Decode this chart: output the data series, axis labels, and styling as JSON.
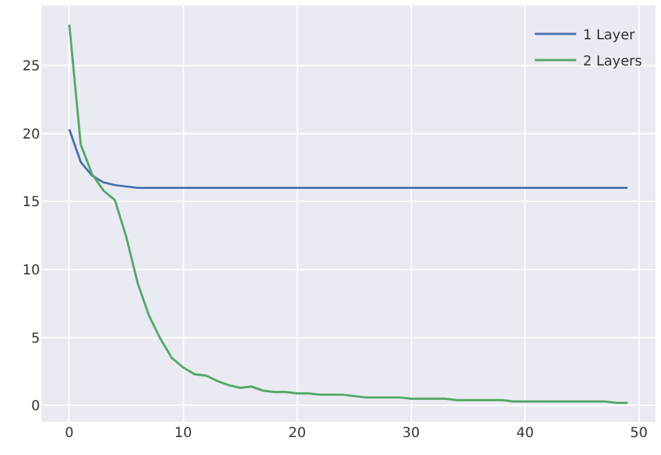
{
  "chart_data": {
    "type": "line",
    "x": [
      0,
      1,
      2,
      3,
      4,
      5,
      6,
      7,
      8,
      9,
      10,
      11,
      12,
      13,
      14,
      15,
      16,
      17,
      18,
      19,
      20,
      21,
      22,
      23,
      24,
      25,
      26,
      27,
      28,
      29,
      30,
      31,
      32,
      33,
      34,
      35,
      36,
      37,
      38,
      39,
      40,
      41,
      42,
      43,
      44,
      45,
      46,
      47,
      48,
      49
    ],
    "series": [
      {
        "name": "1 Layer",
        "color": "#4c72b0",
        "values": [
          20.3,
          17.9,
          16.9,
          16.4,
          16.2,
          16.1,
          16.0,
          16.0,
          16.0,
          16.0,
          16.0,
          16.0,
          16.0,
          16.0,
          16.0,
          16.0,
          16.0,
          16.0,
          16.0,
          16.0,
          16.0,
          16.0,
          16.0,
          16.0,
          16.0,
          16.0,
          16.0,
          16.0,
          16.0,
          16.0,
          16.0,
          16.0,
          16.0,
          16.0,
          16.0,
          16.0,
          16.0,
          16.0,
          16.0,
          16.0,
          16.0,
          16.0,
          16.0,
          16.0,
          16.0,
          16.0,
          16.0,
          16.0,
          16.0,
          16.0
        ]
      },
      {
        "name": "2 Layers",
        "color": "#55a868",
        "values": [
          28.0,
          19.2,
          17.0,
          15.8,
          15.1,
          12.4,
          9.0,
          6.6,
          4.9,
          3.5,
          2.8,
          2.3,
          2.2,
          1.8,
          1.5,
          1.3,
          1.4,
          1.1,
          1.0,
          1.0,
          0.9,
          0.9,
          0.8,
          0.8,
          0.8,
          0.7,
          0.6,
          0.6,
          0.6,
          0.6,
          0.5,
          0.5,
          0.5,
          0.5,
          0.4,
          0.4,
          0.4,
          0.4,
          0.4,
          0.3,
          0.3,
          0.3,
          0.3,
          0.3,
          0.3,
          0.3,
          0.3,
          0.3,
          0.2,
          0.2
        ]
      }
    ],
    "xlim": [
      -2.45,
      51.45
    ],
    "xticks": [
      0,
      10,
      20,
      30,
      40,
      50
    ],
    "ylim": [
      -1.2,
      29.4
    ],
    "yticks": [
      0,
      5,
      10,
      15,
      20,
      25
    ],
    "grid": true,
    "legend": "top right",
    "marker": "none",
    "line_style": "solid"
  }
}
